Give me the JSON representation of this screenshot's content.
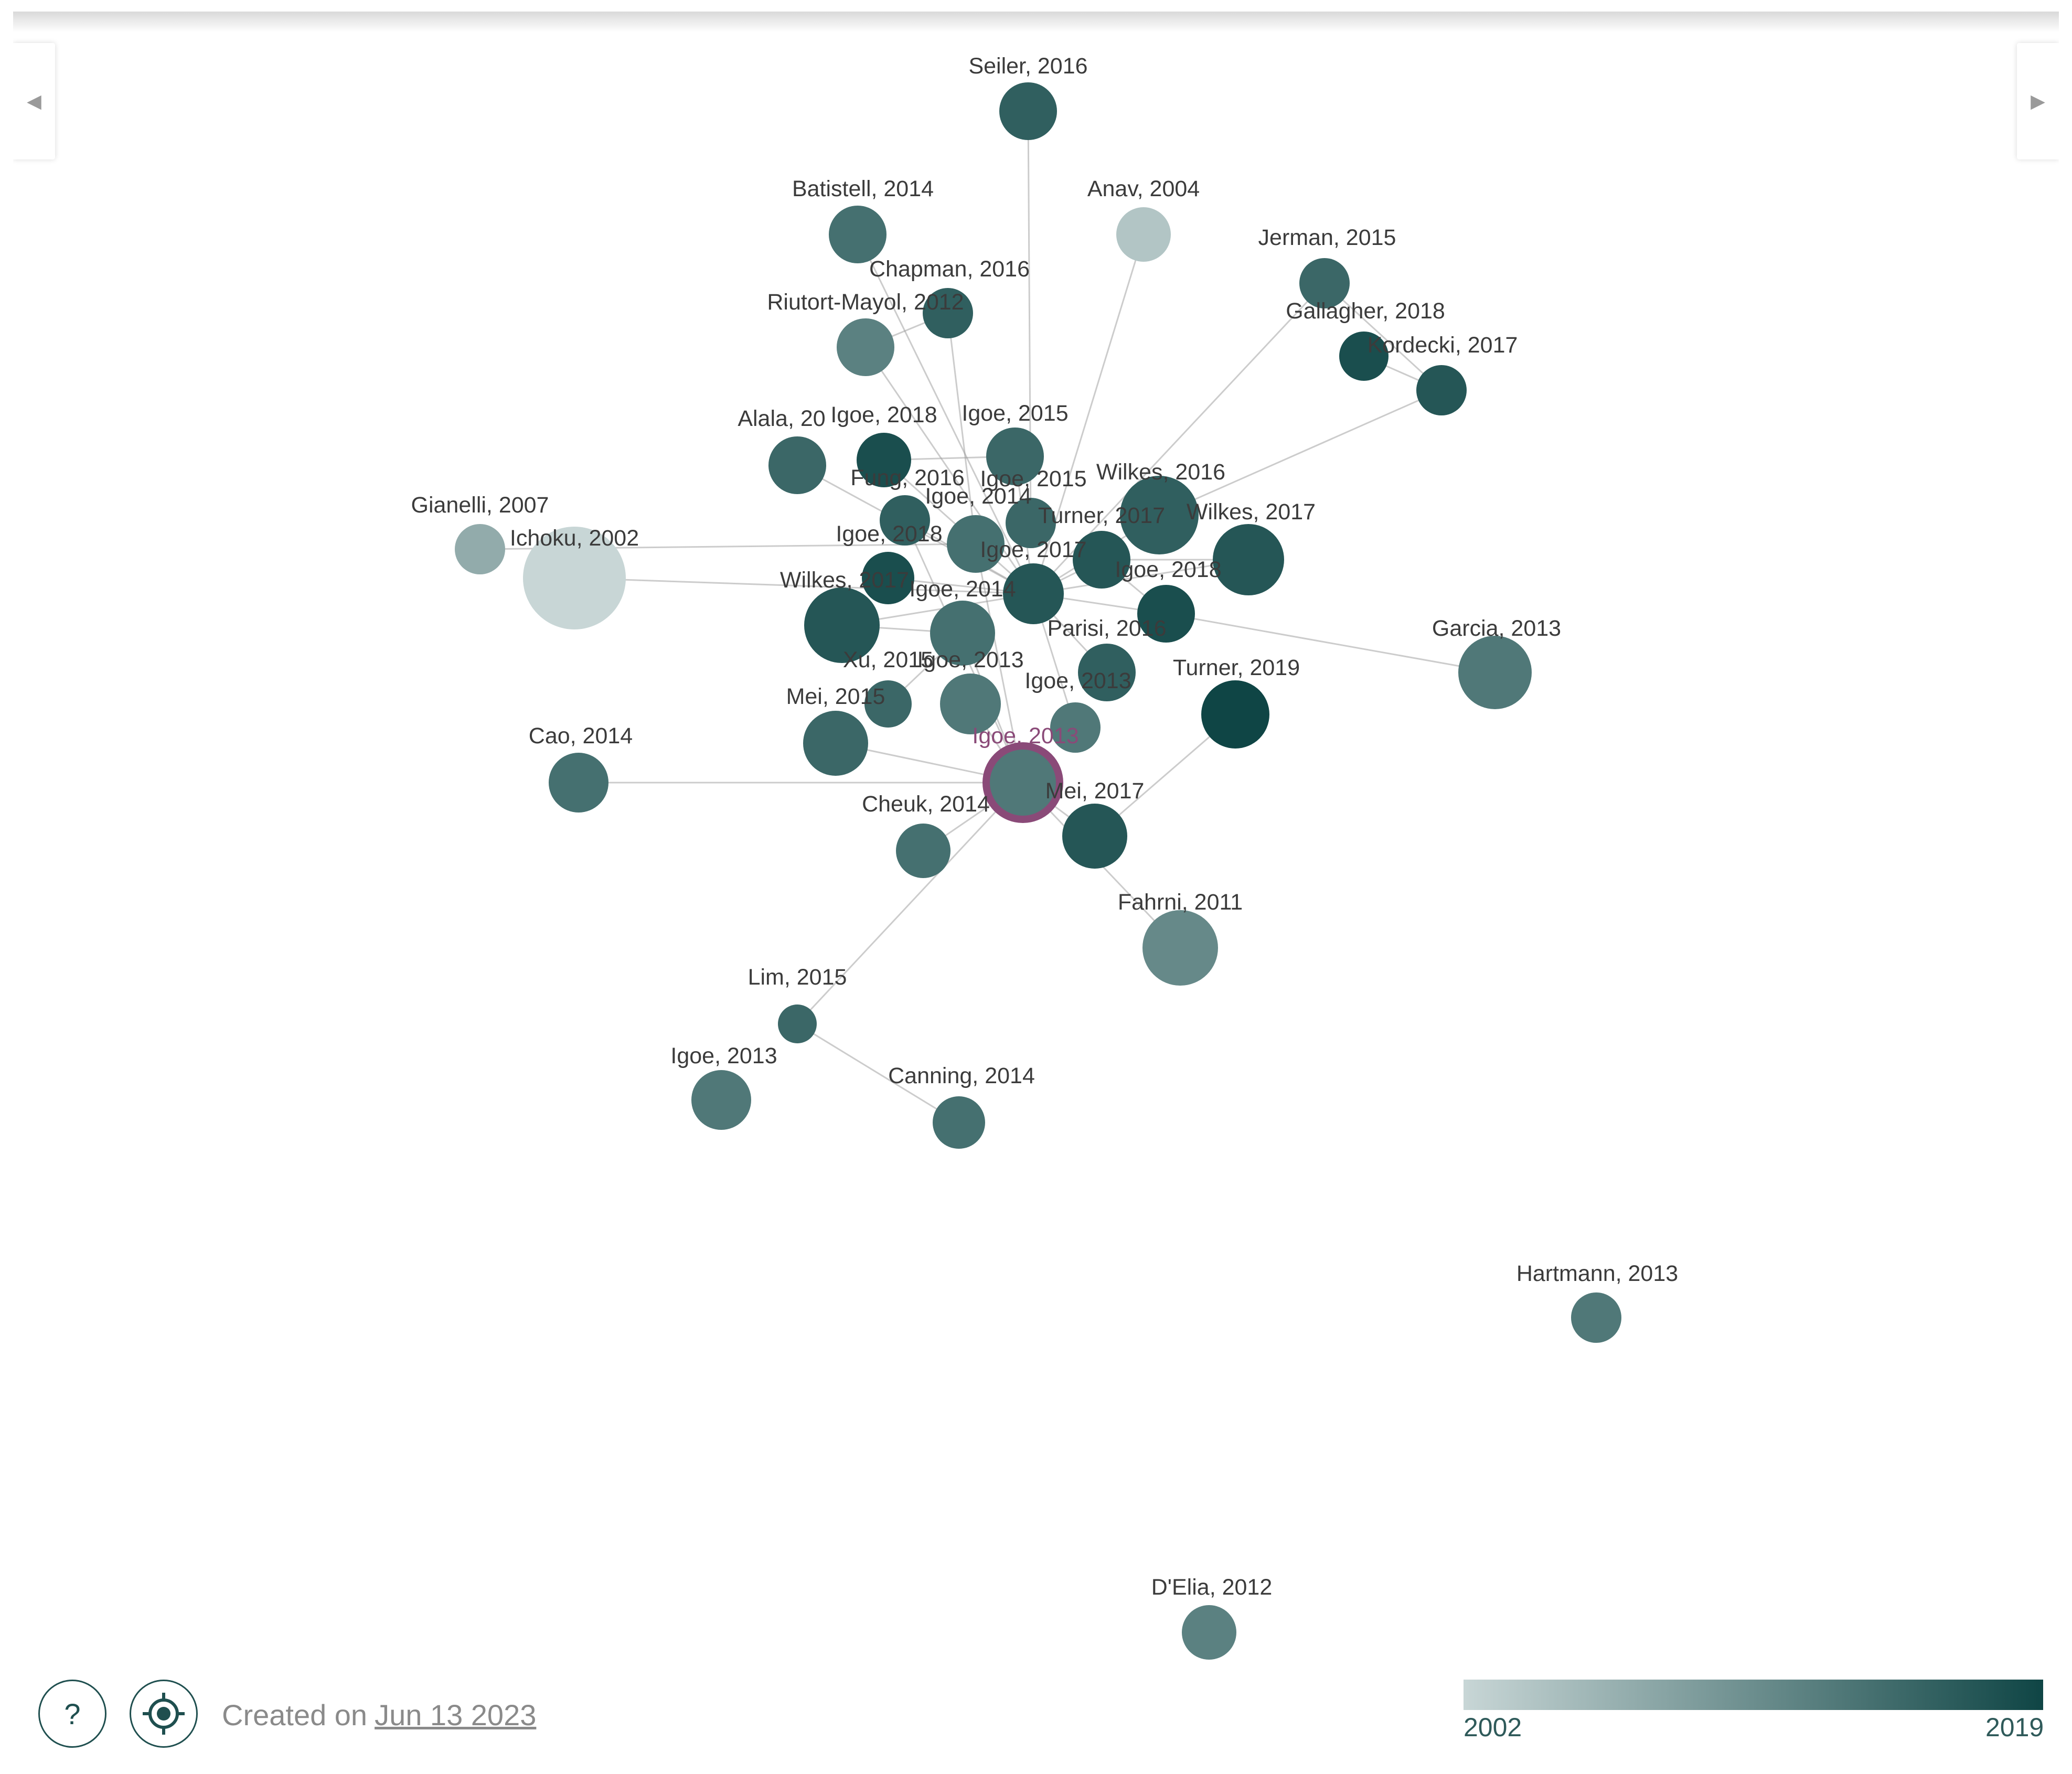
{
  "navigation": {
    "prev_icon": "caret-left-icon",
    "next_icon": "caret-right-icon"
  },
  "controls": {
    "help_label": "?",
    "help_icon": "question-icon",
    "locate_icon": "crosshair-icon"
  },
  "footer": {
    "created_prefix": "Created on",
    "created_date": "Jun 13 2023"
  },
  "legend": {
    "min_label": "2002",
    "max_label": "2019",
    "color_light": "#c8d6d6",
    "color_dark": "#0f4545"
  },
  "colors": {
    "selected_ring": "#8a4a78",
    "edge": "#9a9a9a"
  },
  "graph": {
    "nodes": [
      {
        "id": "seiler2016",
        "label": "Seiler, 2016",
        "year": 2016
      },
      {
        "id": "batistell2014",
        "label": "Batistell, 2014",
        "year": 2014
      },
      {
        "id": "anav2004",
        "label": "Anav, 2004",
        "year": 2004
      },
      {
        "id": "jerman2015",
        "label": "Jerman, 2015",
        "year": 2015
      },
      {
        "id": "chapman2016",
        "label": "Chapman, 2016",
        "year": 2016
      },
      {
        "id": "riutort2012",
        "label": "Riutort-Mayol, 2012",
        "year": 2012
      },
      {
        "id": "gallagher2018",
        "label": "Gallagher, 2018",
        "year": 2018
      },
      {
        "id": "kordecki2017",
        "label": "Kordecki, 2017",
        "year": 2017
      },
      {
        "id": "alala",
        "label": "Alala, 20",
        "year": 2015
      },
      {
        "id": "igoe2018a",
        "label": "Igoe, 2018",
        "year": 2018
      },
      {
        "id": "igoe2015a",
        "label": "Igoe, 2015",
        "year": 2015
      },
      {
        "id": "gianelli2007",
        "label": "Gianelli, 2007",
        "year": 2007
      },
      {
        "id": "ichoku2002",
        "label": "Ichoku, 2002",
        "year": 2002
      },
      {
        "id": "fung2016",
        "label": "Fung, 2016",
        "year": 2016
      },
      {
        "id": "igoe2015b",
        "label": "Igoe, 2015",
        "year": 2015
      },
      {
        "id": "wilkes2016",
        "label": "Wilkes, 2016",
        "year": 2016
      },
      {
        "id": "igoe2014a",
        "label": "Igoe, 2014",
        "year": 2014
      },
      {
        "id": "turner2017",
        "label": "Turner, 2017",
        "year": 2017
      },
      {
        "id": "wilkes2017a",
        "label": "Wilkes, 2017",
        "year": 2017
      },
      {
        "id": "igoe2018b",
        "label": "Igoe, 2018",
        "year": 2018
      },
      {
        "id": "igoe2017",
        "label": "Igoe, 2017",
        "year": 2017
      },
      {
        "id": "igoe2018c",
        "label": "Igoe, 2018",
        "year": 2018
      },
      {
        "id": "wilkes2017b",
        "label": "Wilkes, 2017",
        "year": 2017
      },
      {
        "id": "igoe2014b",
        "label": "Igoe, 2014",
        "year": 2014
      },
      {
        "id": "parisi2016",
        "label": "Parisi, 2016",
        "year": 2016
      },
      {
        "id": "garcia2013",
        "label": "Garcia, 2013",
        "year": 2013
      },
      {
        "id": "xu2015",
        "label": "Xu, 2015",
        "year": 2015
      },
      {
        "id": "igoe2013a",
        "label": "Igoe, 2013",
        "year": 2013
      },
      {
        "id": "igoe2013b",
        "label": "Igoe, 2013",
        "year": 2013
      },
      {
        "id": "turner2019",
        "label": "Turner, 2019",
        "year": 2019
      },
      {
        "id": "mei2015",
        "label": "Mei, 2015",
        "year": 2015
      },
      {
        "id": "cao2014",
        "label": "Cao, 2014",
        "year": 2014
      },
      {
        "id": "igoe2013sel",
        "label": "Igoe, 2013",
        "year": 2013,
        "selected": true
      },
      {
        "id": "mei2017",
        "label": "Mei, 2017",
        "year": 2017
      },
      {
        "id": "cheuk2014",
        "label": "Cheuk, 2014",
        "year": 2014
      },
      {
        "id": "fahrni2011",
        "label": "Fahrni, 2011",
        "year": 2011
      },
      {
        "id": "lim2015",
        "label": "Lim, 2015",
        "year": 2015
      },
      {
        "id": "igoe2013c",
        "label": "Igoe, 2013",
        "year": 2013
      },
      {
        "id": "canning2014",
        "label": "Canning, 2014",
        "year": 2014
      },
      {
        "id": "hartmann2013",
        "label": "Hartmann, 2013",
        "year": 2013
      },
      {
        "id": "delia2012",
        "label": "D'Elia, 2012",
        "year": 2012
      }
    ],
    "edges": [
      [
        "seiler2016",
        "igoe2015b"
      ],
      [
        "anav2004",
        "igoe2017"
      ],
      [
        "chapman2016",
        "riutort2012"
      ],
      [
        "chapman2016",
        "igoe2014a"
      ],
      [
        "riutort2012",
        "igoe2017"
      ],
      [
        "gallagher2018",
        "kordecki2017"
      ],
      [
        "jerman2015",
        "kordecki2017"
      ],
      [
        "jerman2015",
        "igoe2017"
      ],
      [
        "kordecki2017",
        "wilkes2016"
      ],
      [
        "igoe2018a",
        "igoe2017"
      ],
      [
        "igoe2015a",
        "igoe2017"
      ],
      [
        "igoe2015a",
        "igoe2018a"
      ],
      [
        "ichoku2002",
        "igoe2017"
      ],
      [
        "gianelli2007",
        "igoe2014a"
      ],
      [
        "fung2016",
        "igoe2017"
      ],
      [
        "fung2016",
        "igoe2013sel"
      ],
      [
        "wilkes2016",
        "igoe2017"
      ],
      [
        "wilkes2017a",
        "igoe2017"
      ],
      [
        "wilkes2017a",
        "turner2017"
      ],
      [
        "wilkes2017b",
        "igoe2017"
      ],
      [
        "wilkes2017b",
        "igoe2014b"
      ],
      [
        "igoe2018b",
        "igoe2017"
      ],
      [
        "igoe2018c",
        "igoe2017"
      ],
      [
        "igoe2018c",
        "turner2017"
      ],
      [
        "igoe2014a",
        "igoe2013sel"
      ],
      [
        "igoe2014b",
        "igoe2013sel"
      ],
      [
        "turner2017",
        "igoe2017"
      ],
      [
        "parisi2016",
        "igoe2017"
      ],
      [
        "garcia2013",
        "igoe2018c"
      ],
      [
        "xu2015",
        "igoe2014b"
      ],
      [
        "igoe2013a",
        "igoe2013sel"
      ],
      [
        "igoe2013b",
        "igoe2017"
      ],
      [
        "turner2019",
        "mei2017"
      ],
      [
        "mei2015",
        "igoe2013sel"
      ],
      [
        "mei2017",
        "igoe2013sel"
      ],
      [
        "cheuk2014",
        "igoe2013sel"
      ],
      [
        "fahrni2011",
        "igoe2013sel"
      ],
      [
        "lim2015",
        "canning2014"
      ],
      [
        "lim2015",
        "igoe2013sel"
      ],
      [
        "batistell2014",
        "igoe2017"
      ],
      [
        "alala",
        "igoe2017"
      ],
      [
        "cao2014",
        "igoe2013sel"
      ]
    ]
  }
}
